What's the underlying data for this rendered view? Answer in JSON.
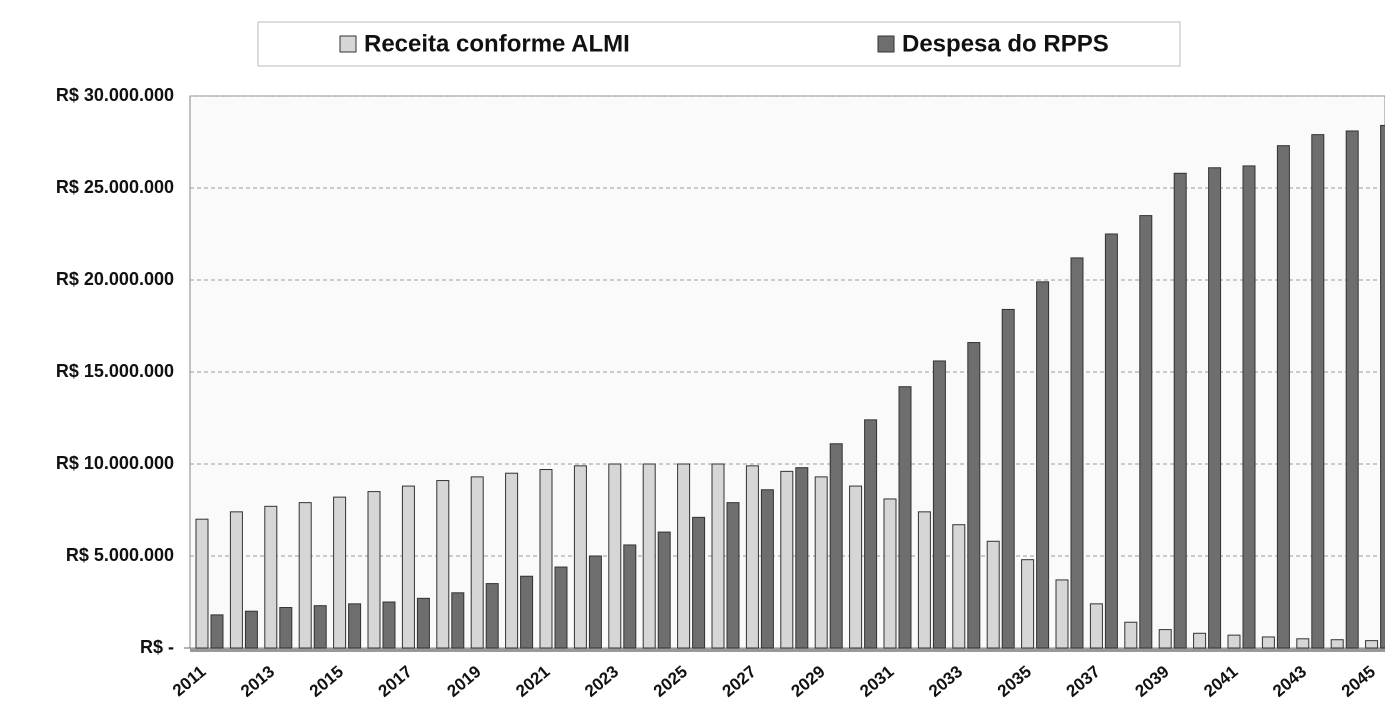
{
  "chart_data": {
    "type": "bar",
    "categories": [
      "2011",
      null,
      "2013",
      null,
      "2015",
      null,
      "2017",
      null,
      "2019",
      null,
      "2021",
      null,
      "2023",
      null,
      "2025",
      null,
      "2027",
      null,
      "2029",
      null,
      "2031",
      null,
      "2033",
      null,
      "2035",
      null,
      "2037",
      null,
      "2039",
      null,
      "2041",
      null,
      "2043",
      null,
      "2045"
    ],
    "series": [
      {
        "name": "Receita conforme ALMI",
        "color": "#d6d6d6",
        "values": [
          7000000,
          7400000,
          7700000,
          7900000,
          8200000,
          8500000,
          8800000,
          9100000,
          9300000,
          9500000,
          9700000,
          9900000,
          10000000,
          10000000,
          10000000,
          10000000,
          9900000,
          9600000,
          9300000,
          8800000,
          8100000,
          7400000,
          6700000,
          5800000,
          4800000,
          3700000,
          2400000,
          1400000,
          1000000,
          800000,
          700000,
          600000,
          500000,
          450000,
          400000
        ]
      },
      {
        "name": "Despesa do RPPS",
        "color": "#6e6e6e",
        "values": [
          1800000,
          2000000,
          2200000,
          2300000,
          2400000,
          2500000,
          2700000,
          3000000,
          3500000,
          3900000,
          4400000,
          5000000,
          5600000,
          6300000,
          7100000,
          7900000,
          8600000,
          9800000,
          11100000,
          12400000,
          14200000,
          15600000,
          16600000,
          18400000,
          19900000,
          21200000,
          22500000,
          23500000,
          25800000,
          26100000,
          26200000,
          27300000,
          27900000,
          28100000,
          28400000
        ]
      }
    ],
    "ylim": [
      0,
      30000000
    ],
    "yticks": [
      {
        "value": 0,
        "label": "R$ -"
      },
      {
        "value": 5000000,
        "label": "R$ 5.000.000"
      },
      {
        "value": 10000000,
        "label": "R$ 10.000.000"
      },
      {
        "value": 15000000,
        "label": "R$ 15.000.000"
      },
      {
        "value": 20000000,
        "label": "R$ 20.000.000"
      },
      {
        "value": 25000000,
        "label": "R$ 25.000.000"
      },
      {
        "value": 30000000,
        "label": "R$ 30.000.000"
      }
    ],
    "grid": true,
    "legend": "top"
  }
}
